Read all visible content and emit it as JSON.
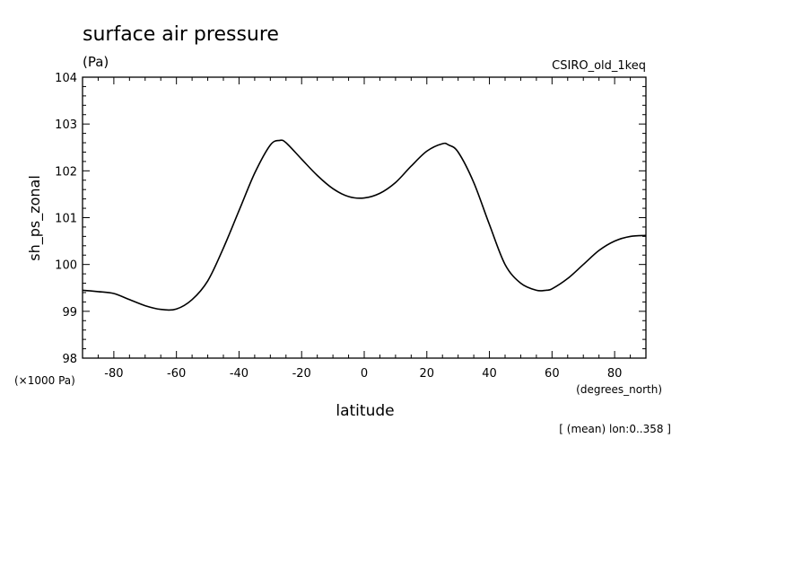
{
  "chart_data": {
    "type": "line",
    "title": "surface air pressure",
    "units_label": "(Pa)",
    "model_label": "CSIRO_old_1keq",
    "xlabel": "latitude",
    "xunits_label": "(degrees_north)",
    "ylabel": "sh_ps_zonal",
    "yscale_label": "(×1000 Pa)",
    "footnote": "[ (mean) lon:0..358 ]",
    "xlim": [
      -90,
      90
    ],
    "ylim": [
      98,
      104
    ],
    "xticks": [
      -80,
      -60,
      -40,
      -20,
      0,
      20,
      40,
      60,
      80
    ],
    "xtick_labels": [
      "-80",
      "-60",
      "-40",
      "-20",
      "0",
      "20",
      "40",
      "60",
      "80"
    ],
    "yticks": [
      98,
      99,
      100,
      101,
      102,
      103,
      104
    ],
    "ytick_labels": [
      "98",
      "99",
      "100",
      "101",
      "102",
      "103",
      "104"
    ],
    "grid": false,
    "series": [
      {
        "x": [
          -90,
          -85,
          -80,
          -75,
          -70,
          -65,
          -60,
          -55,
          -50,
          -45,
          -40,
          -35,
          -30,
          -27,
          -25,
          -20,
          -15,
          -10,
          -5,
          0,
          5,
          10,
          15,
          20,
          25,
          27,
          30,
          35,
          40,
          45,
          50,
          55,
          58,
          60,
          65,
          70,
          75,
          80,
          85,
          90
        ],
        "y": [
          99.45,
          99.42,
          99.38,
          99.25,
          99.12,
          99.04,
          99.05,
          99.25,
          99.65,
          100.35,
          101.15,
          101.95,
          102.55,
          102.65,
          102.6,
          102.25,
          101.9,
          101.62,
          101.45,
          101.42,
          101.52,
          101.75,
          102.1,
          102.42,
          102.58,
          102.55,
          102.4,
          101.75,
          100.85,
          100.0,
          99.6,
          99.45,
          99.45,
          99.48,
          99.7,
          100.0,
          100.3,
          100.5,
          100.6,
          100.62
        ]
      }
    ]
  }
}
